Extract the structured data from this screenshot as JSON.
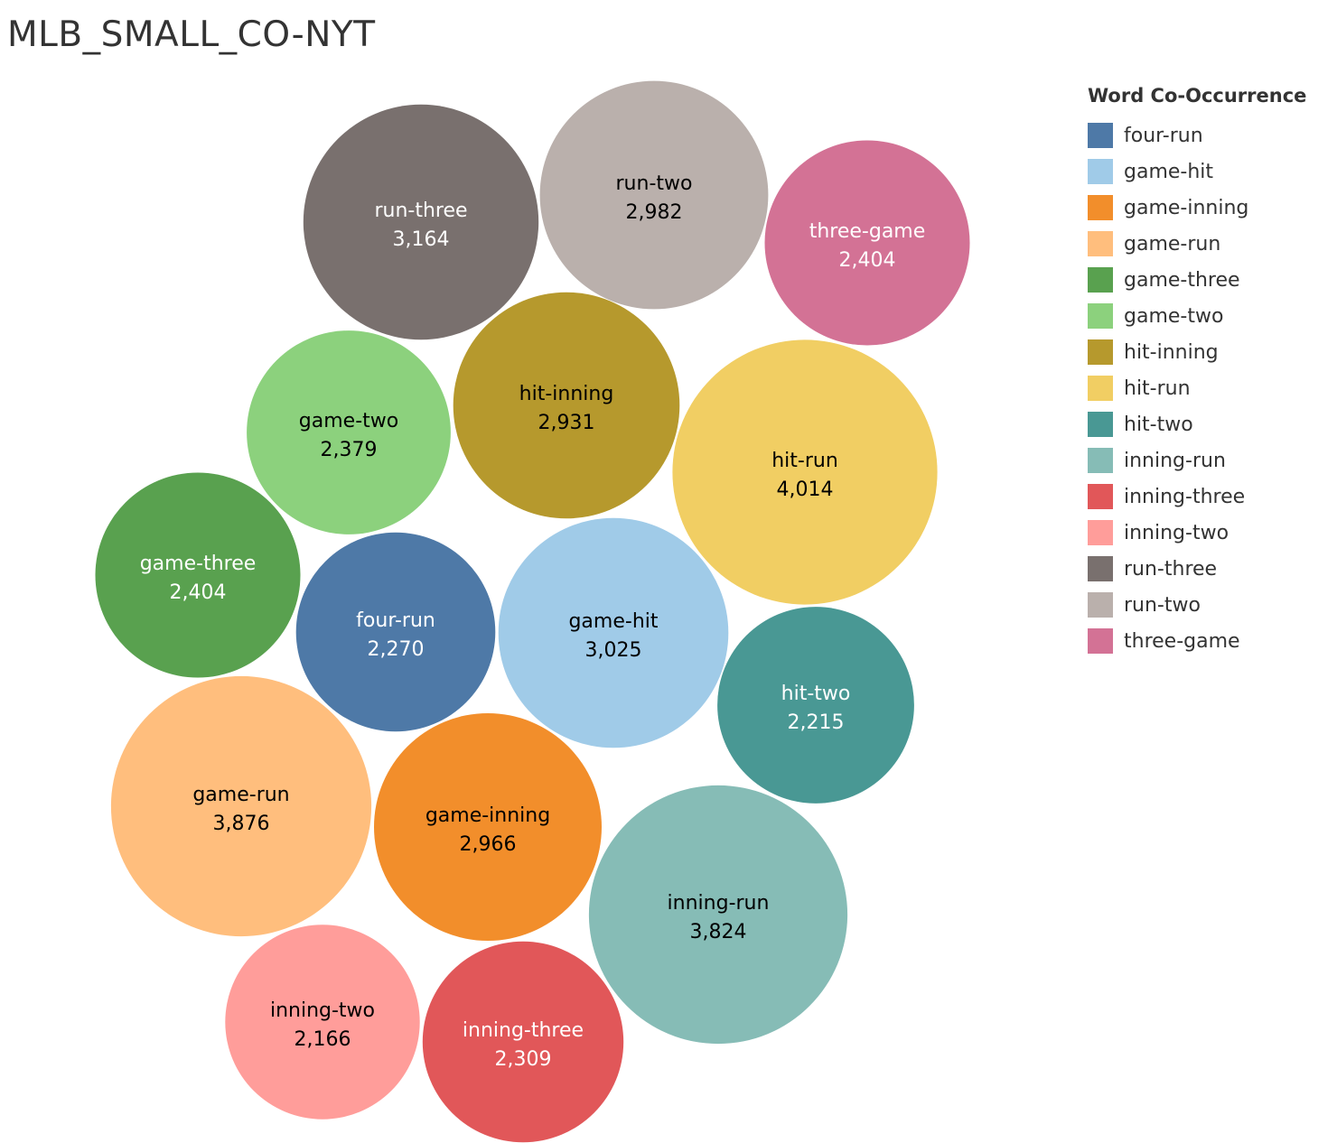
{
  "chart_data": {
    "type": "bubble",
    "title": "MLB_SMALL_CO-NYT",
    "legend_title": "Word Co-Occurrence",
    "legend_position": "right",
    "series": [
      {
        "name": "four-run",
        "value": 2270,
        "value_label": "2,270",
        "color": "#4e79a7",
        "label_color": "#ffffff"
      },
      {
        "name": "game-hit",
        "value": 3025,
        "value_label": "3,025",
        "color": "#a0cbe8",
        "label_color": "#000000"
      },
      {
        "name": "game-inning",
        "value": 2966,
        "value_label": "2,966",
        "color": "#f28e2b",
        "label_color": "#000000"
      },
      {
        "name": "game-run",
        "value": 3876,
        "value_label": "3,876",
        "color": "#ffbe7d",
        "label_color": "#000000"
      },
      {
        "name": "game-three",
        "value": 2404,
        "value_label": "2,404",
        "color": "#59a14f",
        "label_color": "#ffffff"
      },
      {
        "name": "game-two",
        "value": 2379,
        "value_label": "2,379",
        "color": "#8cd17d",
        "label_color": "#000000"
      },
      {
        "name": "hit-inning",
        "value": 2931,
        "value_label": "2,931",
        "color": "#b6992d",
        "label_color": "#000000"
      },
      {
        "name": "hit-run",
        "value": 4014,
        "value_label": "4,014",
        "color": "#f1ce63",
        "label_color": "#000000"
      },
      {
        "name": "hit-two",
        "value": 2215,
        "value_label": "2,215",
        "color": "#499894",
        "label_color": "#ffffff"
      },
      {
        "name": "inning-run",
        "value": 3824,
        "value_label": "3,824",
        "color": "#86bcb6",
        "label_color": "#000000"
      },
      {
        "name": "inning-three",
        "value": 2309,
        "value_label": "2,309",
        "color": "#e15759",
        "label_color": "#ffffff"
      },
      {
        "name": "inning-two",
        "value": 2166,
        "value_label": "2,166",
        "color": "#ff9d9a",
        "label_color": "#000000"
      },
      {
        "name": "run-three",
        "value": 3164,
        "value_label": "3,164",
        "color": "#79706e",
        "label_color": "#ffffff"
      },
      {
        "name": "run-two",
        "value": 2982,
        "value_label": "2,982",
        "color": "#bab0ac",
        "label_color": "#000000"
      },
      {
        "name": "three-game",
        "value": 2404,
        "value_label": "2,404",
        "color": "#d37295",
        "label_color": "#ffffff"
      }
    ]
  }
}
